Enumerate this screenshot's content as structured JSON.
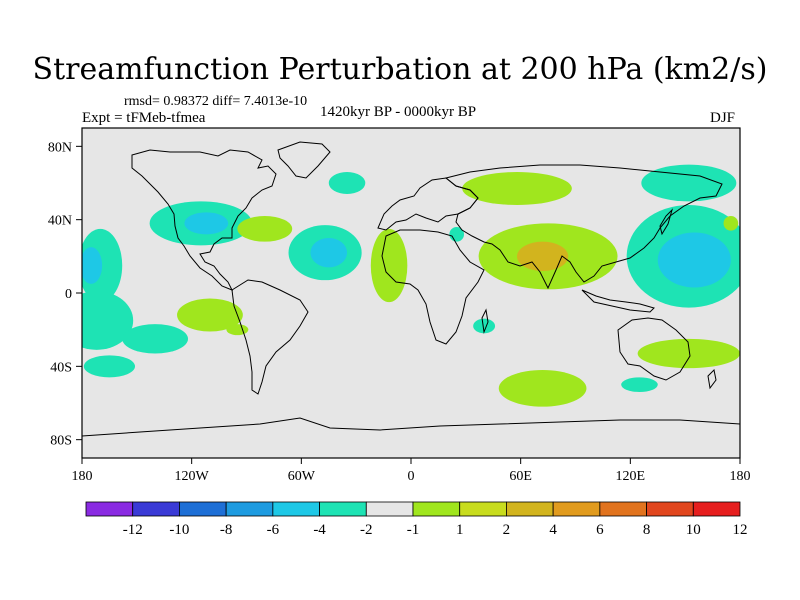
{
  "title": "Streamfunction Perturbation at 200 hPa (km2/s)",
  "stats_text": "rmsd= 0.98372 diff= 7.4013e-10",
  "experiment_text": "Expt = tFMeb-tfmea",
  "period_text": "1420kyr BP - 0000kyr BP",
  "season_text": "DJF",
  "map": {
    "x_ticks": [
      {
        "lon": -180,
        "label": "180"
      },
      {
        "lon": -120,
        "label": "120W"
      },
      {
        "lon": -60,
        "label": "60W"
      },
      {
        "lon": 0,
        "label": "0"
      },
      {
        "lon": 60,
        "label": "60E"
      },
      {
        "lon": 120,
        "label": "120E"
      },
      {
        "lon": 180,
        "label": "180"
      }
    ],
    "y_ticks": [
      {
        "lat": 80,
        "label": "80N"
      },
      {
        "lat": 40,
        "label": "40N"
      },
      {
        "lat": 0,
        "label": "0"
      },
      {
        "lat": -40,
        "label": "40S"
      },
      {
        "lat": -80,
        "label": "80S"
      }
    ],
    "background_color": "#e6e6e6",
    "coastline_color": "#000000"
  },
  "colorbar": {
    "colors": [
      "#8a2be2",
      "#3a3ad6",
      "#1e6fd6",
      "#1e9be0",
      "#1ec8e6",
      "#1ee3b4",
      "#e6e6e6",
      "#a0e61e",
      "#c8dc1e",
      "#d2b41e",
      "#e19b1e",
      "#e1731e",
      "#e1461e",
      "#e61e1e"
    ],
    "labels": [
      "-12",
      "-10",
      "-8",
      "-6",
      "-4",
      "-2",
      "-1",
      "1",
      "2",
      "4",
      "6",
      "8",
      "10",
      "12"
    ]
  },
  "anomalies": [
    {
      "lon": -115,
      "lat": 38,
      "rx": 28,
      "ry": 12,
      "level": -2
    },
    {
      "lon": -112,
      "lat": 38,
      "rx": 12,
      "ry": 6,
      "level": -4
    },
    {
      "lon": -170,
      "lat": 15,
      "rx": 12,
      "ry": 20,
      "level": -2
    },
    {
      "lon": -175,
      "lat": 15,
      "rx": 6,
      "ry": 10,
      "level": -4
    },
    {
      "lon": -172,
      "lat": -15,
      "rx": 20,
      "ry": 16,
      "level": -2
    },
    {
      "lon": -140,
      "lat": -25,
      "rx": 18,
      "ry": 8,
      "level": -2
    },
    {
      "lon": -110,
      "lat": -12,
      "rx": 18,
      "ry": 9,
      "level": 2
    },
    {
      "lon": -165,
      "lat": -40,
      "rx": 14,
      "ry": 6,
      "level": -2
    },
    {
      "lon": -80,
      "lat": 35,
      "rx": 15,
      "ry": 7,
      "level": 2
    },
    {
      "lon": -47,
      "lat": 22,
      "rx": 20,
      "ry": 15,
      "level": -2
    },
    {
      "lon": -45,
      "lat": 22,
      "rx": 10,
      "ry": 8,
      "level": -4
    },
    {
      "lon": -35,
      "lat": 60,
      "rx": 10,
      "ry": 6,
      "level": -2
    },
    {
      "lon": -12,
      "lat": 15,
      "rx": 10,
      "ry": 20,
      "level": 2
    },
    {
      "lon": -95,
      "lat": -20,
      "rx": 6,
      "ry": 3,
      "level": 2
    },
    {
      "lon": 58,
      "lat": 57,
      "rx": 30,
      "ry": 9,
      "level": 2
    },
    {
      "lon": 75,
      "lat": 20,
      "rx": 38,
      "ry": 18,
      "level": 2
    },
    {
      "lon": 72,
      "lat": 20,
      "rx": 14,
      "ry": 8,
      "level": 4
    },
    {
      "lon": 25,
      "lat": 32,
      "rx": 4,
      "ry": 4,
      "level": -2
    },
    {
      "lon": 40,
      "lat": -18,
      "rx": 6,
      "ry": 4,
      "level": -2
    },
    {
      "lon": 72,
      "lat": -52,
      "rx": 24,
      "ry": 10,
      "level": 2
    },
    {
      "lon": 152,
      "lat": 20,
      "rx": 34,
      "ry": 28,
      "level": -2
    },
    {
      "lon": 155,
      "lat": 18,
      "rx": 20,
      "ry": 15,
      "level": -4
    },
    {
      "lon": 152,
      "lat": 60,
      "rx": 26,
      "ry": 10,
      "level": -2
    },
    {
      "lon": 152,
      "lat": -33,
      "rx": 28,
      "ry": 8,
      "level": 2
    },
    {
      "lon": 125,
      "lat": -50,
      "rx": 10,
      "ry": 4,
      "level": -2
    },
    {
      "lon": 175,
      "lat": 38,
      "rx": 4,
      "ry": 4,
      "level": 2
    }
  ]
}
